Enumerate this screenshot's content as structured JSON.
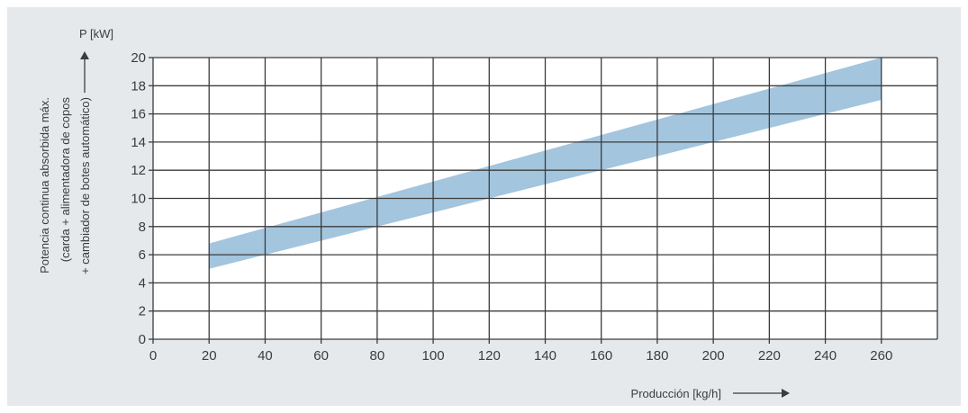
{
  "chart_data": {
    "type": "area",
    "title": "",
    "ylabel_unit": "P [kW]",
    "ylabel_lines": [
      "Potencia continua absorbida máx.",
      "(carda + alimentadora de copos",
      "+ cambiador de botes automático)"
    ],
    "xlabel": "Producción [kg/h]",
    "xlim": [
      0,
      280
    ],
    "ylim": [
      0,
      20
    ],
    "x_ticks": [
      0,
      20,
      40,
      60,
      80,
      100,
      120,
      140,
      160,
      180,
      200,
      220,
      240,
      260
    ],
    "y_ticks": [
      0,
      2,
      4,
      6,
      8,
      10,
      12,
      14,
      16,
      18,
      20
    ],
    "grid": true,
    "series": [
      {
        "x": [
          20,
          260
        ],
        "lower": [
          5.0,
          17.0
        ],
        "upper": [
          6.8,
          20.0
        ]
      }
    ],
    "colors": {
      "band": "#a3c5de",
      "grid": "#3c3c3c",
      "panel": "#e5e9ec",
      "plot": "#ffffff"
    }
  }
}
